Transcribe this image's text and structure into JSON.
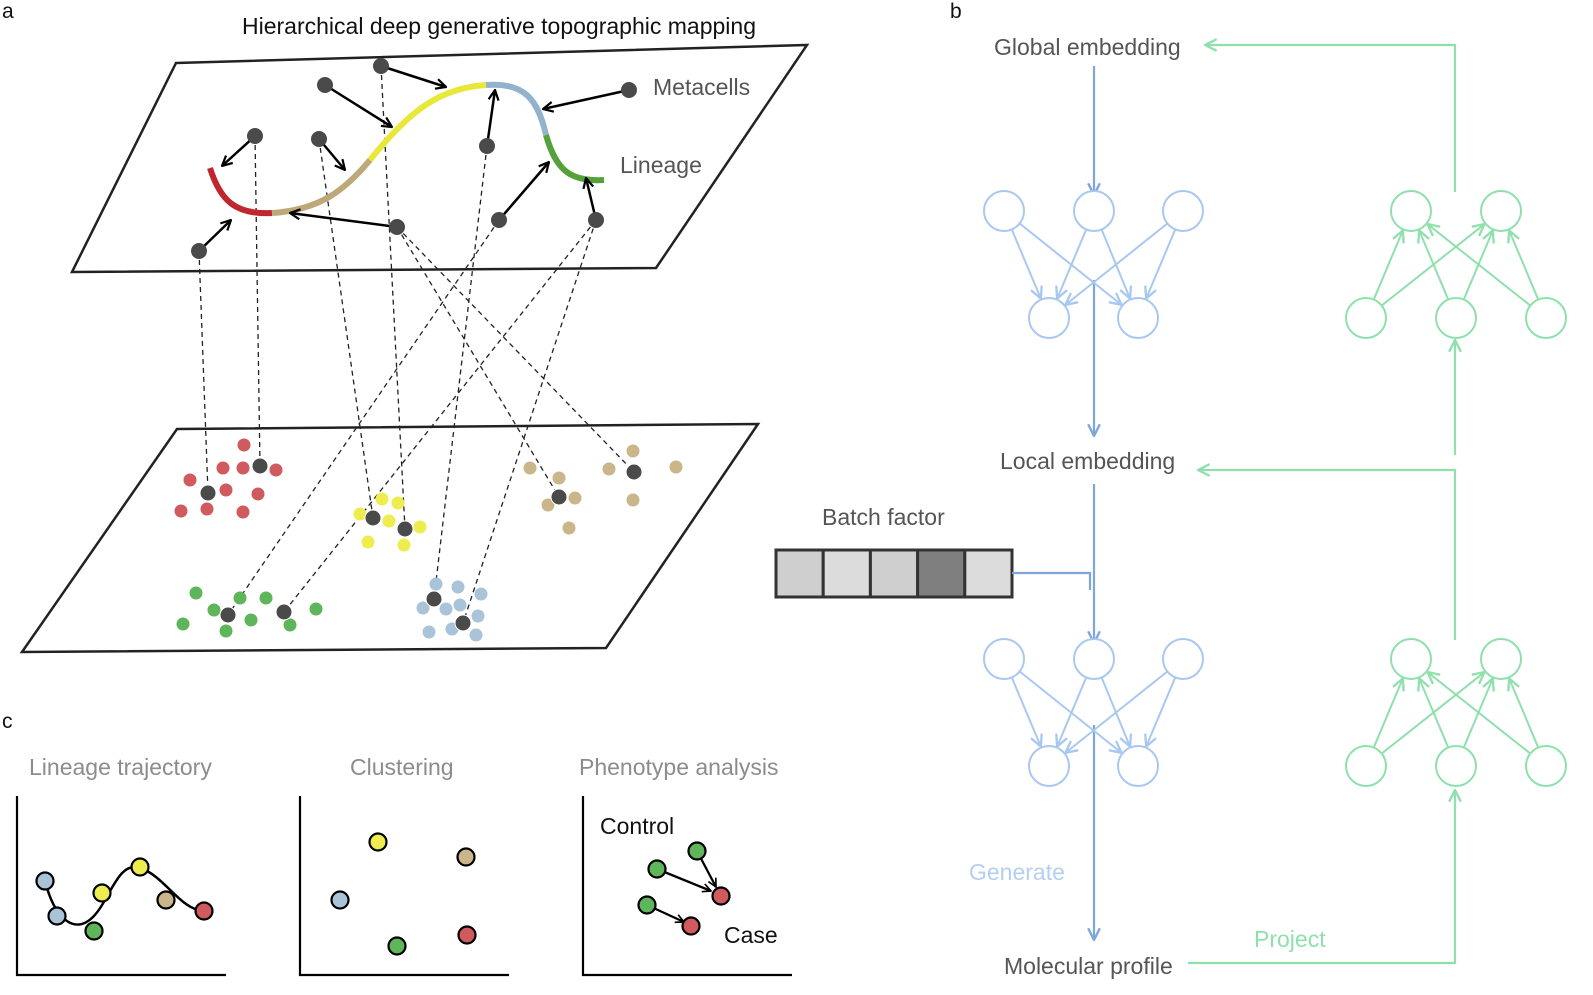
{
  "panel_labels": {
    "a": "a",
    "b": "b",
    "c": "c"
  },
  "panel_a": {
    "title": "Hierarchical deep generative topographic mapping",
    "metacells_label": "Metacells",
    "lineage_label": "Lineage",
    "lineage_segment_colors": [
      "#c0262d",
      "#bea87a",
      "#e8e83a",
      "#93b3cd",
      "#55a23d"
    ],
    "cluster_colors": {
      "red": "#d05a5e",
      "yellow": "#eded4f",
      "tan": "#cbb58a",
      "green": "#5fb55a",
      "blue": "#a9c3d8",
      "node": "#4a4a4a"
    }
  },
  "panel_b": {
    "global_embedding": "Global embedding",
    "local_embedding": "Local embedding",
    "batch_factor": "Batch factor",
    "batch_cells": [
      "#cfcfcf",
      "#dcdcdc",
      "#cfcfcf",
      "#7f7f7f",
      "#dcdcdc"
    ],
    "generate_label": "Generate",
    "project_label": "Project",
    "molecular_profile": "Molecular profile",
    "generate_color": "#9ec2ee",
    "project_color": "#8fe0ad"
  },
  "panel_c": {
    "lineage_title": "Lineage trajectory",
    "clustering_title": "Clustering",
    "phenotype_title": "Phenotype analysis",
    "control_label": "Control",
    "case_label": "Case"
  }
}
